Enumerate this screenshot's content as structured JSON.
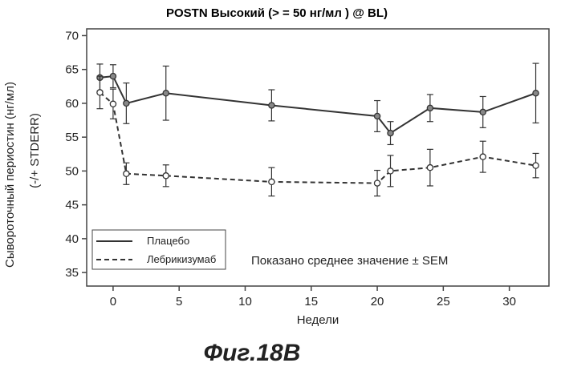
{
  "chart_data": {
    "type": "line",
    "title": "POSTN Высокий (> = 50 нг/мл ) @ BL)",
    "xlabel": "Недели",
    "ylabel_line1": "Сывороточный периостин (нг/мл)",
    "ylabel_line2": "(-/+ STDERR)",
    "xlim": [
      -2,
      33
    ],
    "ylim": [
      33,
      71
    ],
    "xticks": [
      0,
      5,
      10,
      15,
      20,
      25,
      30
    ],
    "yticks": [
      35,
      40,
      45,
      50,
      55,
      60,
      65,
      70
    ],
    "grid": false,
    "legend_position": "bottom-left",
    "annotation": "Показано среднее значение ± SEM",
    "series": [
      {
        "name": "Плацебо",
        "style": "solid",
        "color": "#333333",
        "x": [
          -1,
          0,
          1,
          4,
          12,
          20,
          21,
          24,
          28,
          32
        ],
        "y": [
          63.8,
          64.0,
          60.0,
          61.5,
          59.7,
          58.1,
          55.6,
          59.3,
          58.7,
          61.5
        ],
        "err": [
          2.0,
          1.7,
          3.0,
          4.0,
          2.3,
          2.3,
          1.7,
          2.0,
          2.3,
          4.4
        ]
      },
      {
        "name": "Лебрикизумаб",
        "style": "dashed",
        "color": "#333333",
        "x": [
          -1,
          0,
          1,
          4,
          12,
          20,
          21,
          24,
          28,
          32
        ],
        "y": [
          61.6,
          59.9,
          49.6,
          49.3,
          48.4,
          48.2,
          50.0,
          50.5,
          52.1,
          50.8
        ],
        "err": [
          2.4,
          2.2,
          1.6,
          1.6,
          2.1,
          1.9,
          2.3,
          2.7,
          2.3,
          1.8
        ]
      }
    ]
  },
  "figure_caption": "Фиг.18B"
}
